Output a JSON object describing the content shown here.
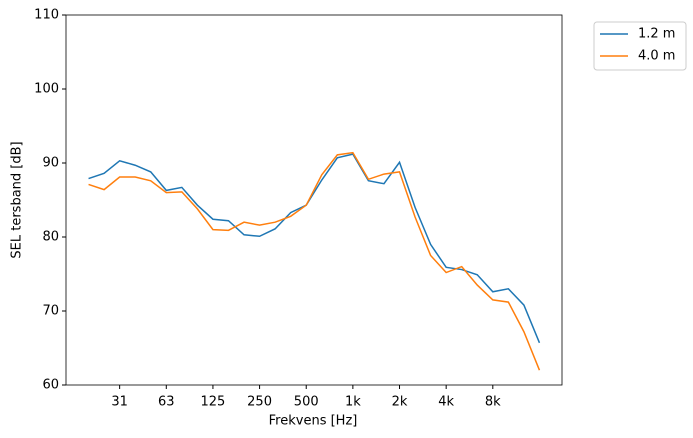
{
  "chart_data": {
    "type": "line",
    "x_label": "Frekvens [Hz]",
    "y_label": "SEL tersband [dB]",
    "categories": [
      null,
      null,
      "31",
      null,
      null,
      "63",
      null,
      null,
      "125",
      null,
      null,
      "250",
      null,
      null,
      "500",
      null,
      null,
      "1k",
      null,
      null,
      "2k",
      null,
      null,
      "4k",
      null,
      null,
      "8k",
      null,
      null,
      null
    ],
    "series": [
      {
        "name": "1.2 m",
        "color": "#1f77b4",
        "values": [
          87.9,
          88.6,
          90.3,
          89.7,
          88.8,
          86.3,
          86.7,
          84.3,
          82.4,
          82.2,
          80.3,
          80.1,
          81.1,
          83.3,
          84.3,
          87.7,
          90.7,
          91.2,
          87.6,
          87.2,
          90.1,
          84.0,
          79.0,
          75.9,
          75.6,
          74.9,
          72.6,
          73.0,
          70.8,
          65.7
        ]
      },
      {
        "name": "4.0 m",
        "color": "#ff7f0e",
        "values": [
          87.1,
          86.4,
          88.1,
          88.1,
          87.6,
          86.0,
          86.1,
          83.8,
          81.0,
          80.9,
          82.0,
          81.6,
          82.0,
          82.8,
          84.3,
          88.4,
          91.1,
          91.4,
          87.8,
          88.5,
          88.8,
          82.7,
          77.5,
          75.2,
          76.0,
          73.5,
          71.5,
          71.2,
          67.2,
          62.0
        ]
      }
    ],
    "ylim": [
      60,
      110
    ],
    "yticks": [
      60,
      70,
      80,
      90,
      100,
      110
    ],
    "grid": false,
    "legend": "outside-upper-right"
  }
}
